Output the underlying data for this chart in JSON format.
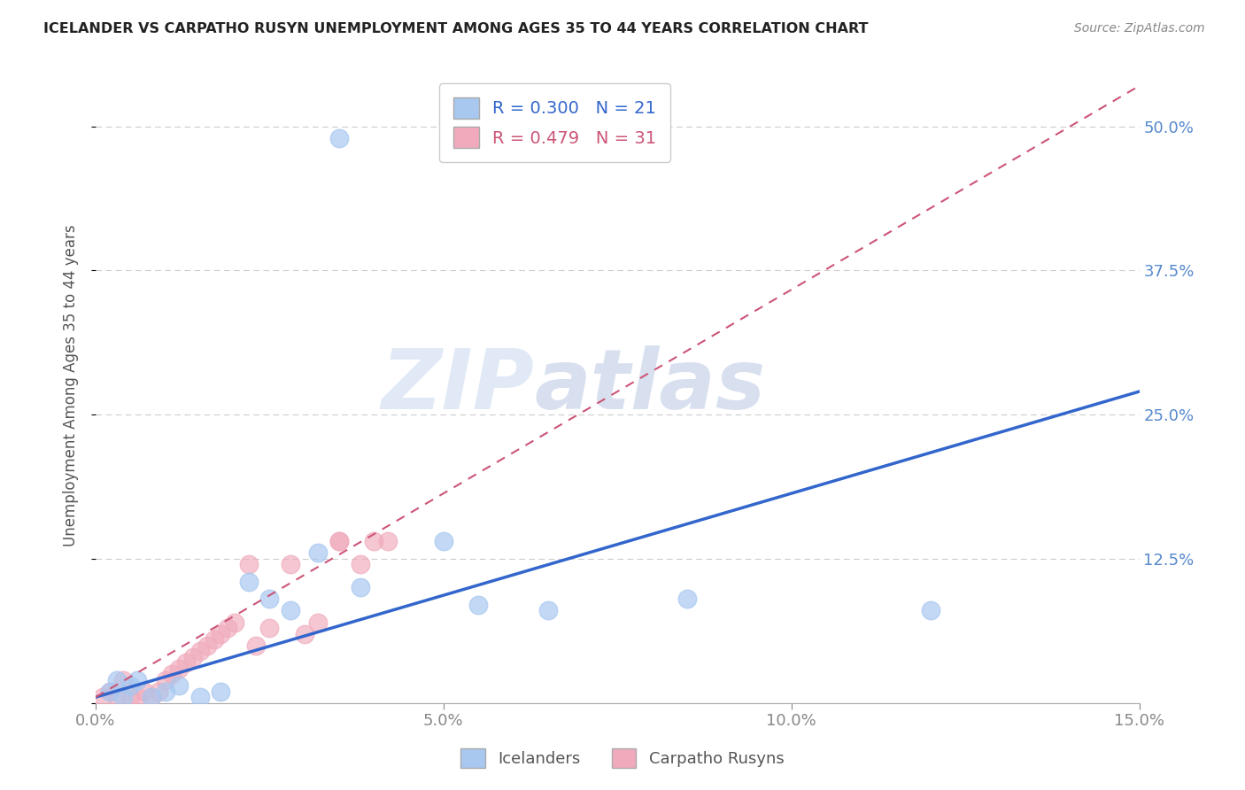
{
  "title": "ICELANDER VS CARPATHO RUSYN UNEMPLOYMENT AMONG AGES 35 TO 44 YEARS CORRELATION CHART",
  "source": "Source: ZipAtlas.com",
  "ylabel": "Unemployment Among Ages 35 to 44 years",
  "xlim": [
    0.0,
    0.15
  ],
  "ylim": [
    0.0,
    0.55
  ],
  "watermark_zip": "ZIP",
  "watermark_atlas": "atlas",
  "legend_blue_R": "R = 0.300",
  "legend_blue_N": "N = 21",
  "legend_pink_R": "R = 0.479",
  "legend_pink_N": "N = 31",
  "blue_color": "#A8C8F0",
  "pink_color": "#F0AABB",
  "trend_blue_color": "#3366CC",
  "trend_pink_color": "#CC5577",
  "blue_trend_x": [
    0.0,
    0.15
  ],
  "blue_trend_y": [
    0.005,
    0.27
  ],
  "pink_trend_x": [
    0.0,
    0.15
  ],
  "pink_trend_y": [
    0.005,
    0.535
  ],
  "icelanders_x": [
    0.002,
    0.003,
    0.004,
    0.005,
    0.006,
    0.008,
    0.01,
    0.012,
    0.015,
    0.018,
    0.022,
    0.025,
    0.028,
    0.032,
    0.038,
    0.035,
    0.05,
    0.055,
    0.065,
    0.085,
    0.12
  ],
  "icelanders_y": [
    0.01,
    0.02,
    0.005,
    0.015,
    0.02,
    0.005,
    0.01,
    0.015,
    0.005,
    0.01,
    0.105,
    0.09,
    0.08,
    0.13,
    0.1,
    0.49,
    0.14,
    0.085,
    0.08,
    0.09,
    0.08
  ],
  "rusyns_x": [
    0.001,
    0.002,
    0.003,
    0.004,
    0.005,
    0.006,
    0.007,
    0.008,
    0.009,
    0.01,
    0.011,
    0.012,
    0.013,
    0.014,
    0.015,
    0.016,
    0.017,
    0.018,
    0.019,
    0.02,
    0.022,
    0.023,
    0.025,
    0.028,
    0.03,
    0.032,
    0.035,
    0.035,
    0.038,
    0.04,
    0.042
  ],
  "rusyns_y": [
    0.005,
    0.01,
    0.005,
    0.02,
    0.005,
    0.005,
    0.01,
    0.005,
    0.01,
    0.02,
    0.025,
    0.03,
    0.035,
    0.04,
    0.045,
    0.05,
    0.055,
    0.06,
    0.065,
    0.07,
    0.12,
    0.05,
    0.065,
    0.12,
    0.06,
    0.07,
    0.14,
    0.14,
    0.12,
    0.14,
    0.14
  ]
}
